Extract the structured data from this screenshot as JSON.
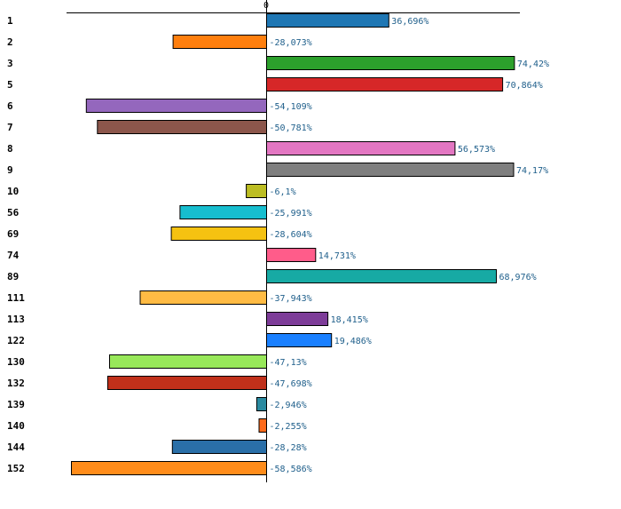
{
  "chart_data": {
    "type": "bar",
    "orientation": "horizontal",
    "title": "",
    "xlabel": "",
    "ylabel": "",
    "zero_tick_label": "0",
    "xlim": [
      -82,
      105
    ],
    "categories": [
      "1",
      "2",
      "3",
      "5",
      "6",
      "7",
      "8",
      "9",
      "10",
      "56",
      "69",
      "74",
      "89",
      "111",
      "113",
      "122",
      "130",
      "132",
      "139",
      "140",
      "144",
      "152"
    ],
    "values": [
      36.696,
      -28.073,
      74.42,
      70.864,
      -54.109,
      -50.781,
      56.573,
      74.17,
      -6.1,
      -25.991,
      -28.604,
      14.731,
      68.976,
      -37.943,
      18.415,
      19.486,
      -47.13,
      -47.698,
      -2.946,
      -2.255,
      -28.28,
      -58.586
    ],
    "value_labels": [
      "36,696%",
      "-28,073%",
      "74,42%",
      "70,864%",
      "-54,109%",
      "-50,781%",
      "56,573%",
      "74,17%",
      "-6,1%",
      "-25,991%",
      "-28,604%",
      "14,731%",
      "68,976%",
      "-37,943%",
      "18,415%",
      "19,486%",
      "-47,13%",
      "-47,698%",
      "-2,946%",
      "-2,255%",
      "-28,28%",
      "-58,586%"
    ],
    "colors": [
      "#1f77b4",
      "#ff7f0e",
      "#2ca02c",
      "#d62728",
      "#9467bd",
      "#8c564b",
      "#e377c2",
      "#7f7f7f",
      "#bcbd22",
      "#17becf",
      "#f5c211",
      "#ff5c8a",
      "#17aaa4",
      "#ffbb44",
      "#7d3c98",
      "#1a80ff",
      "#98e85a",
      "#c0301a",
      "#2a8aa0",
      "#ff6a1a",
      "#2a6fa8",
      "#ff8c1a"
    ]
  }
}
